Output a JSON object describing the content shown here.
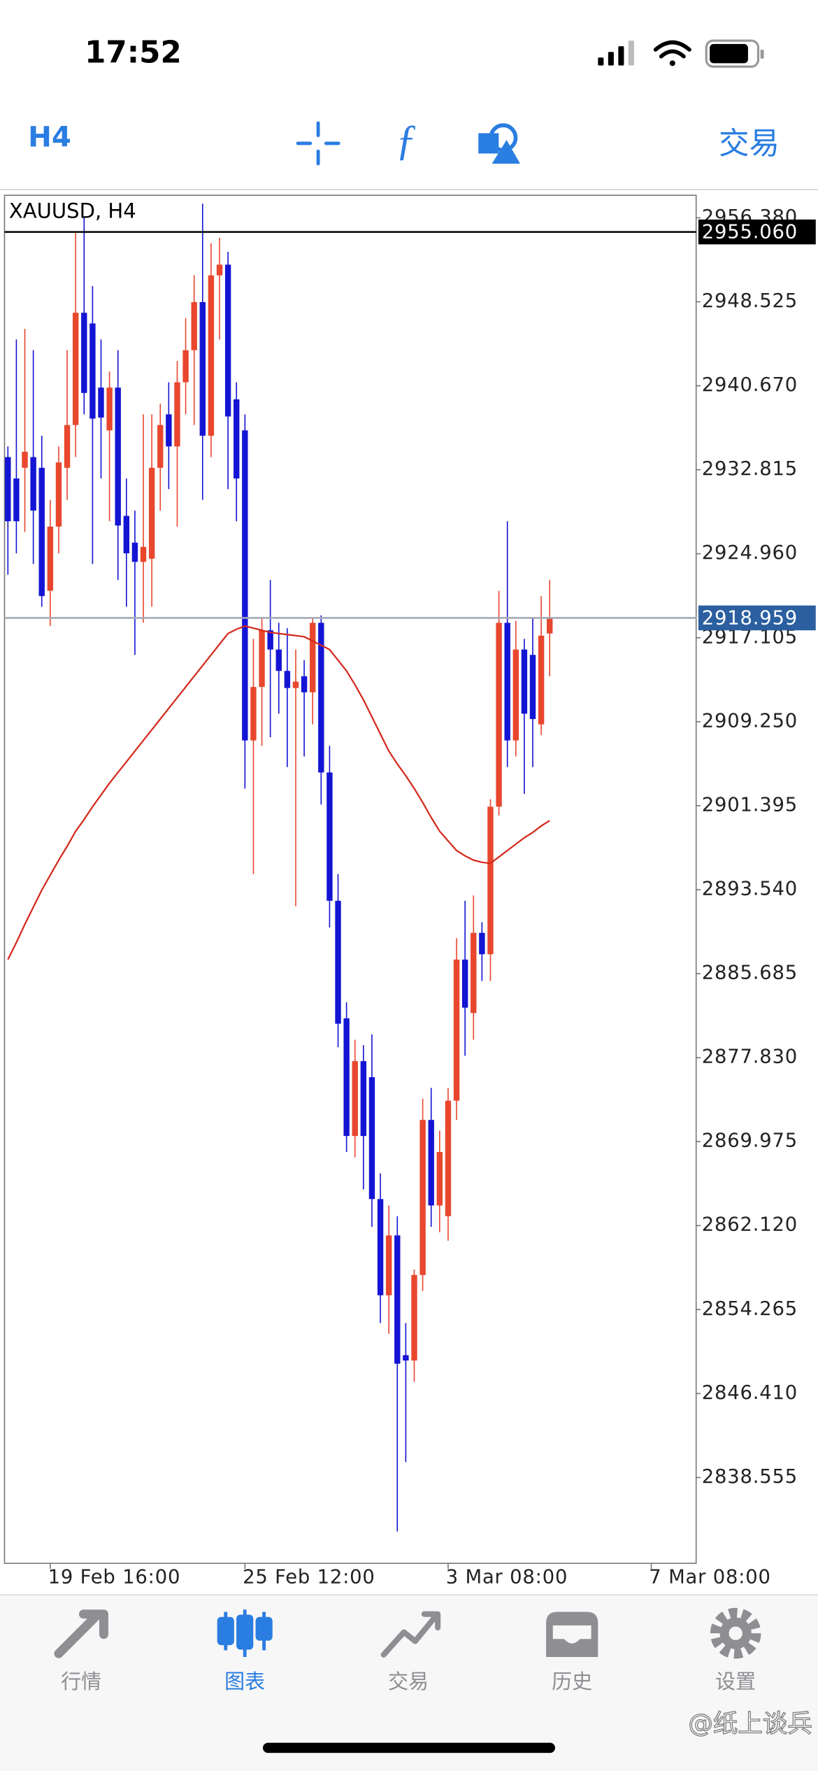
{
  "status_bar": {
    "time": "17:52"
  },
  "toolbar": {
    "timeframe": "H4",
    "trade": "交易"
  },
  "chart_data": {
    "type": "candlestick",
    "title": "XAUUSD, H4",
    "up_color": "#e8472e",
    "down_color": "#1414d4",
    "open": [
      2934,
      2932,
      2933,
      2934,
      2933,
      2921.5,
      2927.5,
      2933,
      2937,
      2947.5,
      2946.5,
      2940.5,
      2936.5,
      2940.5,
      2928.5,
      2926,
      2924.2,
      2924.5,
      2933,
      2938,
      2935,
      2941,
      2944,
      2948.5,
      2936,
      2951,
      2952,
      2939.4,
      2936.5,
      2907.5,
      2912.5,
      2917.8,
      2916,
      2914,
      2912.4,
      2913.5,
      2912,
      2918.5,
      2904.5,
      2892.5,
      2881.5,
      2870.5,
      2877.5,
      2876,
      2864.6,
      2855.6,
      2861.2,
      2850,
      2849.5,
      2857.5,
      2872,
      2864,
      2863,
      2873.8,
      2887,
      2882,
      2889.5,
      2887.5,
      2901.3,
      2918.5,
      2907.5,
      2916,
      2915.5,
      2909,
      2917.5
    ],
    "high": [
      2935,
      2945,
      2946,
      2944,
      2936,
      2930,
      2935,
      2944,
      2955,
      2956.5,
      2950,
      2945,
      2942,
      2944,
      2932,
      2929,
      2938,
      2938,
      2939,
      2941,
      2943,
      2947,
      2951,
      2957.7,
      2954,
      2954.5,
      2953.2,
      2941,
      2938,
      2917,
      2919,
      2922.5,
      2918.5,
      2918,
      2916,
      2915,
      2919,
      2919.2,
      2907,
      2895,
      2883,
      2879.5,
      2879,
      2880,
      2867,
      2864,
      2863,
      2853,
      2858,
      2874,
      2875,
      2871,
      2875,
      2889,
      2892.5,
      2893,
      2890.5,
      2902,
      2921.5,
      2928,
      2918.7,
      2917,
      2919,
      2921,
      2922.5
    ],
    "low": [
      2923,
      2925,
      2927,
      2924,
      2920,
      2918.2,
      2925,
      2930,
      2934,
      2938,
      2924,
      2932,
      2928,
      2922.5,
      2920,
      2915.5,
      2918.5,
      2920,
      2929,
      2931,
      2927.5,
      2938,
      2937,
      2930,
      2934,
      2945,
      2931,
      2928,
      2903,
      2895,
      2907,
      2907.8,
      2910,
      2905,
      2892,
      2906,
      2909,
      2901.5,
      2890,
      2878.8,
      2869,
      2868.5,
      2865.5,
      2862,
      2853,
      2852,
      2833.5,
      2840,
      2847.5,
      2856,
      2862,
      2861.5,
      2860.7,
      2872,
      2878,
      2879.5,
      2885,
      2885,
      2900.5,
      2905,
      2906,
      2902.5,
      2905,
      2908,
      2913.5
    ],
    "close": [
      2928,
      2928,
      2934.5,
      2929,
      2921,
      2927.5,
      2933.5,
      2937,
      2947.5,
      2940,
      2937.6,
      2937.7,
      2940.5,
      2927.6,
      2925,
      2924.2,
      2925.6,
      2933,
      2937,
      2935,
      2941,
      2944,
      2948.5,
      2936,
      2951,
      2952,
      2937.8,
      2932,
      2907.5,
      2912.5,
      2917.8,
      2916,
      2914,
      2912.4,
      2913,
      2912,
      2918.5,
      2904.5,
      2892.5,
      2881,
      2870.5,
      2877.5,
      2870.5,
      2864.6,
      2855.6,
      2861.2,
      2849.2,
      2849.5,
      2857.5,
      2872,
      2864,
      2869,
      2873.8,
      2887,
      2882.5,
      2889.5,
      2887.5,
      2901.3,
      2918.5,
      2907.5,
      2916,
      2910,
      2909.5,
      2917.3,
      2918.959
    ],
    "ma": {
      "color": "#d42a1e",
      "values": [
        2887,
        2888.6,
        2890.3,
        2891.9,
        2893.5,
        2894.9,
        2896.3,
        2897.6,
        2899,
        2900.1,
        2901.3,
        2902.4,
        2903.5,
        2904.5,
        2905.5,
        2906.5,
        2907.5,
        2908.5,
        2909.5,
        2910.5,
        2911.5,
        2912.5,
        2913.5,
        2914.5,
        2915.5,
        2916.5,
        2917.5,
        2917.9,
        2918.2,
        2918,
        2917.8,
        2917.6,
        2917.5,
        2917.4,
        2917.3,
        2917.2,
        2916.8,
        2916.4,
        2916,
        2915,
        2914,
        2912.7,
        2911.3,
        2909.7,
        2908.1,
        2906.5,
        2905.3,
        2904.2,
        2903,
        2901.7,
        2900.3,
        2899,
        2898.1,
        2897.2,
        2896.7,
        2896.3,
        2896.1,
        2896,
        2896.6,
        2897.2,
        2897.8,
        2898.4,
        2898.9,
        2899.5,
        2900
      ]
    },
    "xlim": [
      -0.4,
      81.3
    ],
    "xticks": [
      {
        "value": 5,
        "label": "19 Feb 16:00"
      },
      {
        "value": 28,
        "label": "25 Feb 12:00"
      },
      {
        "value": 52,
        "label": "3 Mar 08:00"
      },
      {
        "value": 76,
        "label": "7 Mar 08:00"
      }
    ],
    "ylim": [
      2830.53,
      2958.49
    ],
    "yticks": [
      {
        "value": 2956.38,
        "label": "2956.380"
      },
      2948.525,
      {
        "value": 2940.67,
        "label": "2940.670"
      },
      2932.815,
      {
        "value": 2924.96,
        "label": "2924.960"
      },
      2917.105,
      {
        "value": 2909.25,
        "label": "2909.250"
      },
      2901.395,
      {
        "value": 2893.54,
        "label": "2893.540"
      },
      2885.685,
      {
        "value": 2877.83,
        "label": "2877.830"
      },
      2869.975,
      {
        "value": 2862.12,
        "label": "2862.120"
      },
      2854.265,
      {
        "value": 2846.41,
        "label": "2846.410"
      },
      2838.555
    ],
    "price_lines": [
      {
        "value": 2955.06,
        "label": "2955.060",
        "color": "#000000",
        "line_color": "#000000"
      },
      {
        "value": 2918.959,
        "label": "2918.959",
        "color": "#2b5fa0",
        "line_color": "#a3a9b6"
      }
    ]
  },
  "tab_bar": {
    "tabs": [
      "行情",
      "图表",
      "交易",
      "历史",
      "设置"
    ]
  },
  "watermark": "@纸上谈兵"
}
